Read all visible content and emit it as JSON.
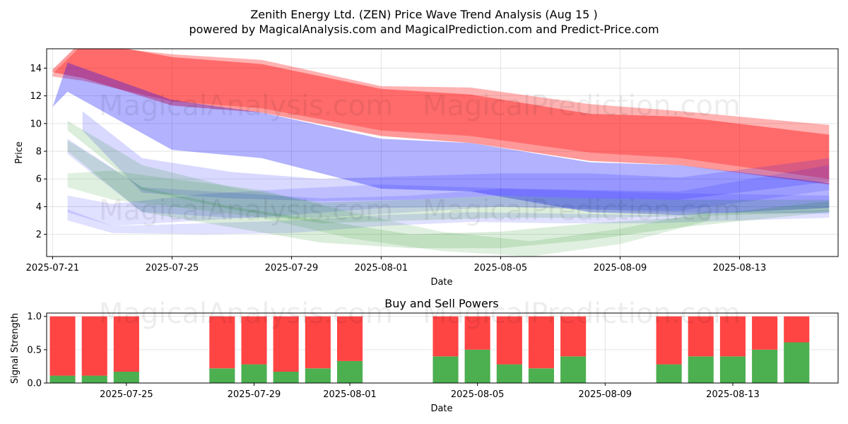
{
  "header": {
    "title_line1": "Zenith Energy Ltd. (ZEN) Price Wave Trend Analysis (Aug 15 )",
    "title_line2": "powered by MagicalAnalysis.com and MagicalPrediction.com and Predict-Price.com"
  },
  "watermarks": [
    "MagicalAnalysis.com",
    "MagicalPrediction.com"
  ],
  "colors": {
    "red": "#ff0000",
    "blue": "#0000ff",
    "green": "#008000",
    "buy": "#4caf50",
    "sell": "#ff4444"
  },
  "chart_data": [
    {
      "type": "area",
      "title": "",
      "xlabel": "Date",
      "ylabel": "Price",
      "x_ticks": [
        "2025-07-21",
        "2025-07-25",
        "2025-07-29",
        "2025-08-01",
        "2025-08-05",
        "2025-08-09",
        "2025-08-13"
      ],
      "y_ticks": [
        "2",
        "4",
        "6",
        "8",
        "10",
        "12",
        "14"
      ],
      "ylim": [
        0.4,
        15.4
      ],
      "x_range_days": [
        -0.2,
        26.3
      ],
      "grid": true,
      "bands": [
        {
          "color": "red",
          "opacity": 0.3,
          "x": [
            0,
            1,
            4,
            7,
            11,
            14,
            18,
            21,
            26
          ],
          "upper": [
            13.6,
            15.7,
            15.0,
            14.6,
            12.7,
            12.6,
            11.4,
            10.9,
            9.9
          ],
          "lower": [
            13.4,
            13.1,
            11.6,
            11.1,
            9.5,
            9.1,
            7.9,
            7.5,
            6.0
          ]
        },
        {
          "color": "red",
          "opacity": 0.4,
          "x": [
            0,
            1,
            4,
            7,
            11,
            14,
            18,
            21,
            26
          ],
          "upper": [
            13.9,
            16.0,
            14.8,
            14.3,
            12.5,
            12.1,
            10.7,
            10.5,
            9.2
          ],
          "lower": [
            13.7,
            13.3,
            11.3,
            10.8,
            9.1,
            8.6,
            7.3,
            7.0,
            5.6
          ]
        },
        {
          "color": "blue",
          "opacity": 0.3,
          "x": [
            0,
            0.5,
            4,
            7,
            11,
            14,
            18,
            21,
            26
          ],
          "upper": [
            11.2,
            14.4,
            11.7,
            10.8,
            8.9,
            8.6,
            7.2,
            7.0,
            5.7
          ],
          "lower": [
            11.2,
            12.3,
            8.1,
            7.5,
            5.3,
            5.1,
            3.6,
            3.4,
            3.9
          ]
        },
        {
          "color": "blue",
          "opacity": 0.15,
          "x": [
            1,
            3,
            6,
            9,
            12,
            15,
            18,
            21,
            26
          ],
          "upper": [
            10.9,
            7.5,
            6.5,
            6.0,
            6.2,
            6.4,
            6.4,
            6.1,
            7.5
          ],
          "lower": [
            9.5,
            5.0,
            4.6,
            4.4,
            4.5,
            4.8,
            4.6,
            4.5,
            5.8
          ]
        },
        {
          "color": "blue",
          "opacity": 0.12,
          "x": [
            0.5,
            3,
            6,
            9,
            12,
            15,
            18,
            21,
            26
          ],
          "upper": [
            8.9,
            5.4,
            5.0,
            4.6,
            4.8,
            5.3,
            5.2,
            5.1,
            7.0
          ],
          "lower": [
            7.8,
            3.6,
            3.2,
            3.2,
            3.6,
            4.0,
            3.8,
            3.7,
            5.2
          ]
        },
        {
          "color": "blue",
          "opacity": 0.12,
          "x": [
            0.5,
            2,
            5,
            8,
            11,
            14,
            17,
            20,
            26
          ],
          "upper": [
            4.8,
            4.2,
            4.9,
            5.3,
            5.6,
            5.4,
            5.2,
            5.0,
            4.8
          ],
          "lower": [
            3.6,
            2.6,
            3.0,
            3.4,
            3.9,
            4.0,
            3.9,
            3.6,
            3.5
          ]
        },
        {
          "color": "blue",
          "opacity": 0.12,
          "x": [
            0.5,
            2,
            5,
            8,
            11,
            14,
            17,
            20,
            26
          ],
          "upper": [
            3.8,
            2.6,
            2.8,
            3.0,
            3.4,
            3.6,
            3.5,
            3.4,
            3.8
          ],
          "lower": [
            3.0,
            2.1,
            2.0,
            2.1,
            2.6,
            2.9,
            2.8,
            2.8,
            3.2
          ]
        },
        {
          "color": "green",
          "opacity": 0.14,
          "x": [
            0.5,
            3,
            6,
            9,
            12,
            15,
            18,
            21,
            26
          ],
          "upper": [
            10.2,
            7.0,
            5.4,
            4.3,
            4.5,
            4.8,
            4.6,
            4.5,
            4.5
          ],
          "lower": [
            9.5,
            5.2,
            3.8,
            2.8,
            3.0,
            3.2,
            3.2,
            3.3,
            3.6
          ]
        },
        {
          "color": "green",
          "opacity": 0.14,
          "x": [
            0.5,
            3,
            6,
            9,
            12,
            15,
            18,
            21,
            26
          ],
          "upper": [
            8.8,
            5.4,
            4.0,
            3.0,
            2.0,
            2.2,
            2.8,
            3.2,
            4.4
          ],
          "lower": [
            8.0,
            3.6,
            2.5,
            1.4,
            1.0,
            1.0,
            1.6,
            2.5,
            3.6
          ]
        },
        {
          "color": "green",
          "opacity": 0.12,
          "x": [
            0.5,
            2,
            4,
            7,
            10,
            13,
            16,
            19,
            22
          ],
          "upper": [
            6.4,
            6.6,
            6.0,
            5.2,
            3.6,
            2.2,
            1.5,
            2.4,
            3.7
          ],
          "lower": [
            5.4,
            4.5,
            4.0,
            3.2,
            1.7,
            0.8,
            0.4,
            1.3,
            3.0
          ]
        }
      ]
    },
    {
      "type": "bar",
      "title": "Buy and Sell Powers",
      "xlabel": "Date",
      "ylabel": "Signal Strength",
      "x_ticks": [
        "2025-07-25",
        "2025-07-29",
        "2025-08-01",
        "2025-08-05",
        "2025-08-09",
        "2025-08-13"
      ],
      "y_ticks": [
        "0.0",
        "0.5",
        "1.0"
      ],
      "ylim": [
        0,
        1.05
      ],
      "x_range_days": [
        1.5,
        26.3
      ],
      "categories": [
        "2025-07-23",
        "2025-07-24",
        "2025-07-25",
        "2025-07-28",
        "2025-07-29",
        "2025-07-30",
        "2025-07-31",
        "2025-08-01",
        "2025-08-04",
        "2025-08-05",
        "2025-08-06",
        "2025-08-07",
        "2025-08-08",
        "2025-08-11",
        "2025-08-12",
        "2025-08-13",
        "2025-08-14",
        "2025-08-15"
      ],
      "series": [
        {
          "name": "Buy",
          "values": [
            0.11,
            0.11,
            0.17,
            0.22,
            0.28,
            0.17,
            0.22,
            0.33,
            0.4,
            0.5,
            0.28,
            0.22,
            0.4,
            0.28,
            0.4,
            0.4,
            0.5,
            0.61
          ]
        },
        {
          "name": "Sell",
          "values": [
            0.89,
            0.89,
            0.83,
            0.78,
            0.72,
            0.83,
            0.78,
            0.67,
            0.6,
            0.5,
            0.72,
            0.78,
            0.6,
            0.72,
            0.6,
            0.6,
            0.5,
            0.39
          ]
        }
      ]
    }
  ]
}
